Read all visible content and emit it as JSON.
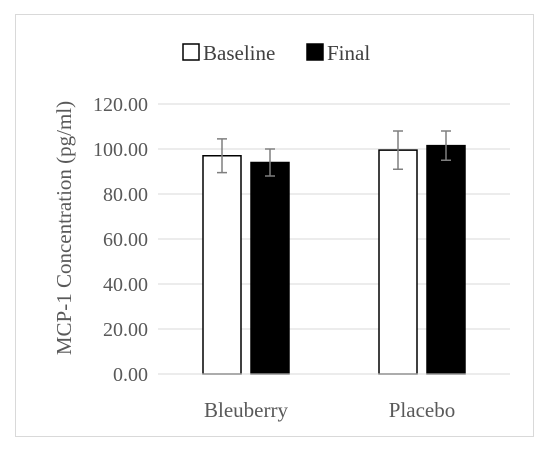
{
  "chart_data": {
    "type": "bar",
    "title": "",
    "xlabel": "",
    "ylabel": "MCP-1 Concentration (pg/ml)",
    "categories": [
      "Bleuberry",
      "Placebo"
    ],
    "series": [
      {
        "name": "Baseline",
        "values": [
          97,
          99.5
        ],
        "errors": [
          7.5,
          8.5
        ],
        "fill": "#ffffff",
        "stroke": "#000000"
      },
      {
        "name": "Final",
        "values": [
          94,
          101.5
        ],
        "errors": [
          6,
          6.5
        ],
        "fill": "#000000",
        "stroke": "#000000"
      }
    ],
    "ylim": [
      0,
      120
    ],
    "yticks": [
      "0.00",
      "20.00",
      "40.00",
      "60.00",
      "80.00",
      "100.00",
      "120.00"
    ],
    "grid": true,
    "legend_position": "top-center"
  }
}
